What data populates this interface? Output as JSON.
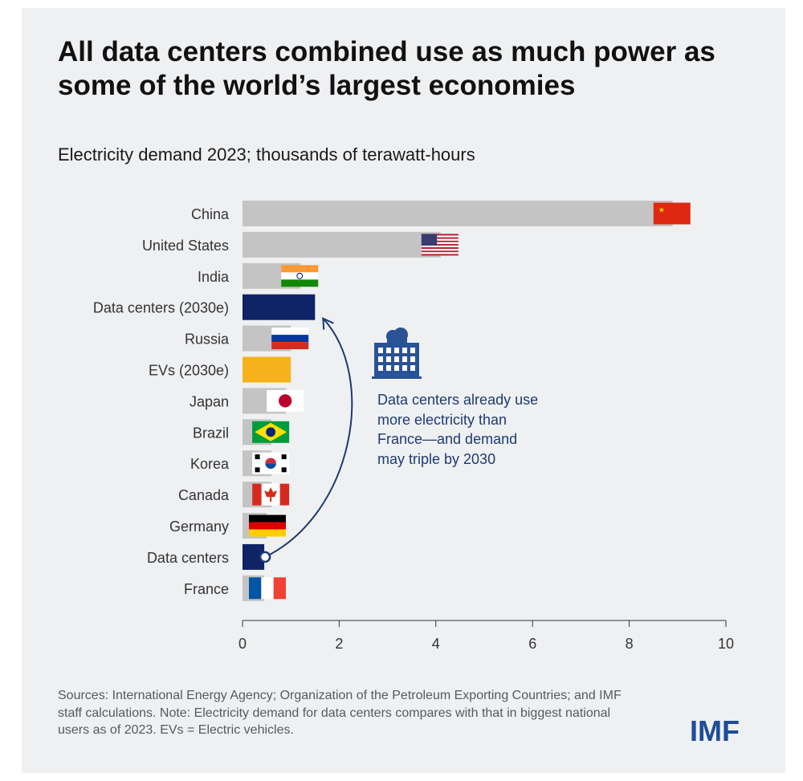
{
  "title": "All data centers combined use as much power as some of the world’s largest economies",
  "callout": "Data centers already use more electricity than France—and demand may triple by 2030",
  "sources": "Sources: International Energy Agency; Organization of the Petroleum Exporting Countries; and IMF staff calculations. Note: Electricity demand for data centers compares with that in biggest national users as of 2023. EVs = Electric vehicles.",
  "logo": "IMF",
  "colors": {
    "grey": "#c4c4c4",
    "navy": "#0f2466",
    "amber": "#f5b21c",
    "callout": "#1d3a73"
  },
  "chart_data": {
    "type": "bar",
    "orientation": "horizontal",
    "title": "Electricity demand 2023; thousands of terawatt-hours",
    "xlim": [
      0,
      10
    ],
    "xticks": [
      "0",
      "2",
      "4",
      "6",
      "8",
      "10"
    ],
    "categories": [
      "China",
      "United States",
      "India",
      "Data centers (2030e)",
      "Russia",
      "EVs (2030e)",
      "Japan",
      "Brazil",
      "Korea",
      "Canada",
      "Germany",
      "Data centers",
      "France"
    ],
    "values": [
      8.9,
      4.1,
      1.2,
      1.5,
      1.0,
      1.0,
      0.9,
      0.6,
      0.6,
      0.6,
      0.5,
      0.45,
      0.45
    ],
    "bar_kind": [
      "country",
      "country",
      "country",
      "datacenter",
      "country",
      "ev",
      "country",
      "country",
      "country",
      "country",
      "country",
      "datacenter",
      "country"
    ],
    "flags": [
      "china",
      "us",
      "india",
      "",
      "russia",
      "",
      "japan",
      "brazil",
      "korea",
      "canada",
      "germany",
      "",
      "france"
    ]
  }
}
